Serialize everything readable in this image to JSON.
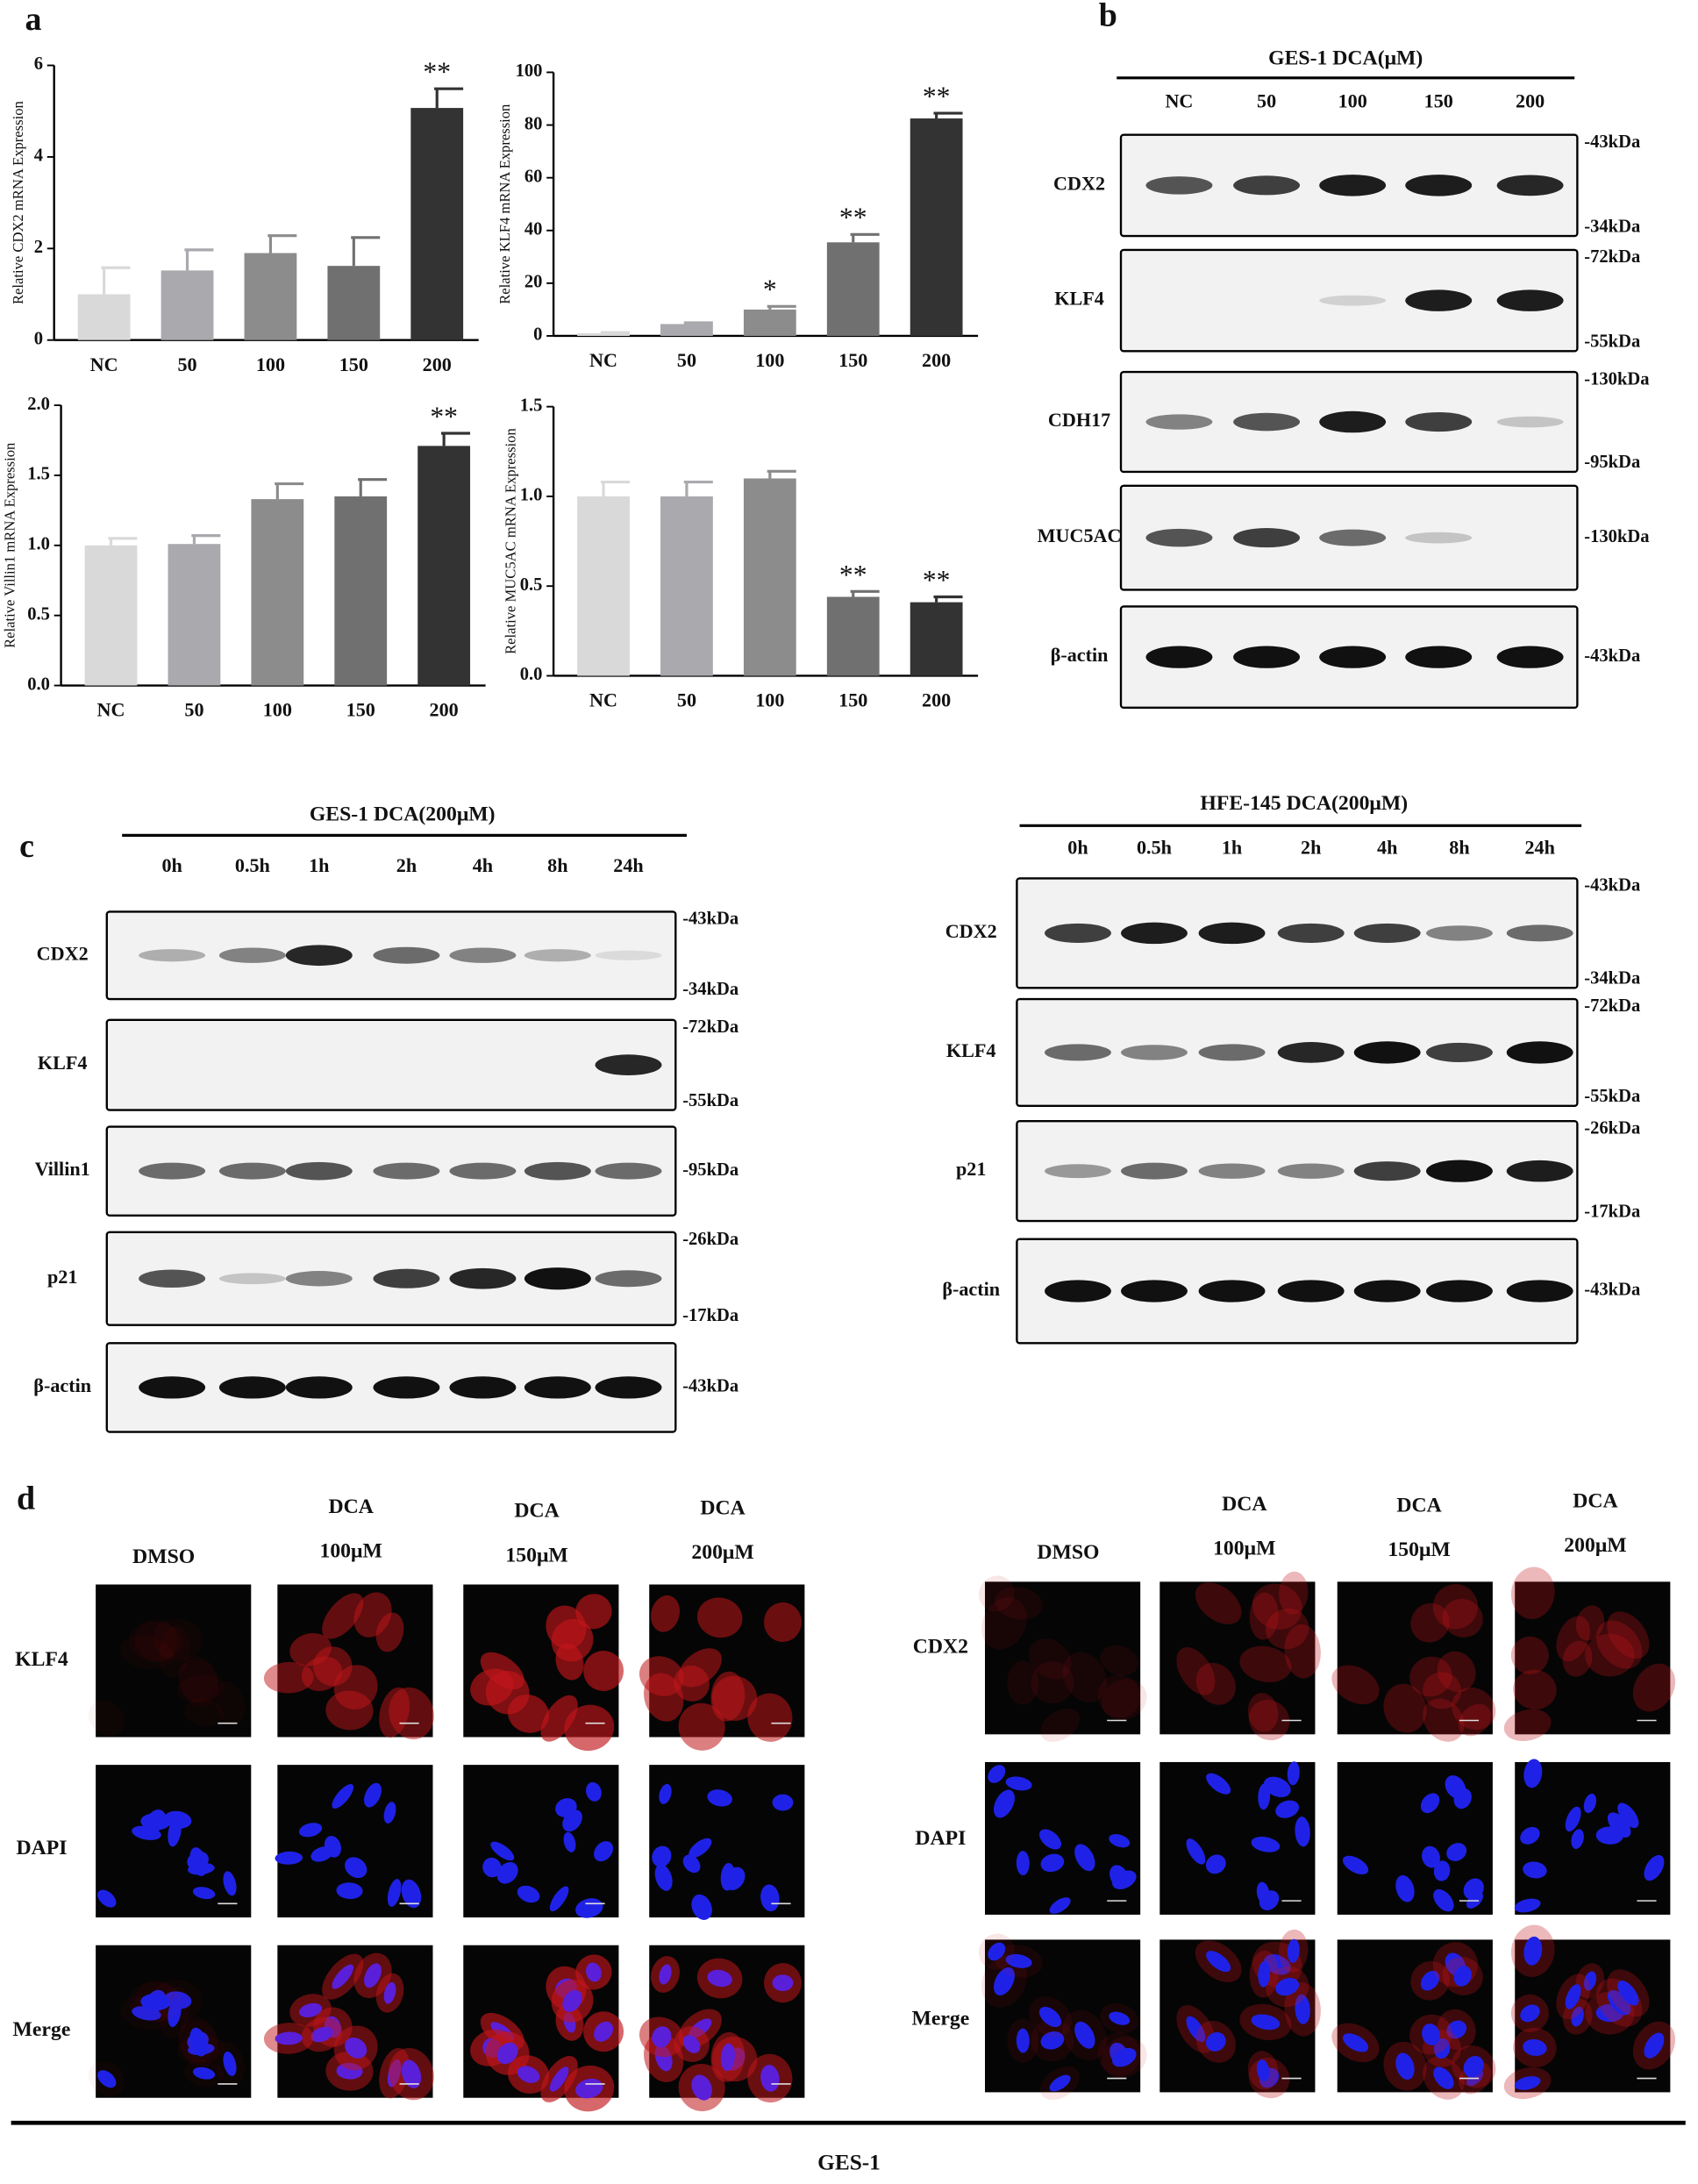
{
  "panel_labels": [
    "a",
    "b",
    "c",
    "d"
  ],
  "chart_data": [
    {
      "type": "bar",
      "ylabel": "Relative CDX2 mRNA Expression",
      "categories": [
        "NC",
        "50",
        "100",
        "150",
        "200"
      ],
      "values": [
        1.0,
        1.52,
        1.9,
        1.62,
        5.07
      ],
      "errors": [
        0.58,
        0.45,
        0.38,
        0.62,
        0.42
      ],
      "significance": [
        null,
        null,
        null,
        null,
        "**"
      ],
      "colors": [
        "#d9d9d9",
        "#a9a9ae",
        "#8c8c8c",
        "#707070",
        "#333333"
      ],
      "ylim": [
        0,
        6
      ],
      "yticks": [
        0,
        2,
        4,
        6
      ]
    },
    {
      "type": "bar",
      "ylabel": "Relative KLF4 mRNA Expression",
      "categories": [
        "NC",
        "50",
        "100",
        "150",
        "200"
      ],
      "values": [
        1.0,
        4.5,
        10.0,
        35.5,
        82.5
      ],
      "errors": [
        0.3,
        0.5,
        1.2,
        3.0,
        2.0
      ],
      "significance": [
        null,
        null,
        "*",
        "**",
        "**"
      ],
      "colors": [
        "#d9d9d9",
        "#a9a9ae",
        "#8c8c8c",
        "#707070",
        "#333333"
      ],
      "ylim": [
        0,
        100
      ],
      "yticks": [
        0,
        20,
        40,
        60,
        80,
        100
      ]
    },
    {
      "type": "bar",
      "ylabel": "Relative Villin1 mRNA Expression",
      "categories": [
        "NC",
        "50",
        "100",
        "150",
        "200"
      ],
      "values": [
        1.0,
        1.01,
        1.33,
        1.35,
        1.71
      ],
      "errors": [
        0.05,
        0.06,
        0.11,
        0.12,
        0.09
      ],
      "significance": [
        null,
        null,
        null,
        null,
        "**"
      ],
      "colors": [
        "#d9d9d9",
        "#a9a9ae",
        "#8c8c8c",
        "#707070",
        "#333333"
      ],
      "ylim": [
        0,
        2
      ],
      "yticks": [
        {
          "value": 0,
          "label": "0.0"
        },
        {
          "value": 0.5,
          "label": "0.5"
        },
        {
          "value": 1,
          "label": "1.0"
        },
        {
          "value": 1.5,
          "label": "1.5"
        },
        {
          "value": 2,
          "label": "2.0"
        }
      ]
    },
    {
      "type": "bar",
      "ylabel": "Relative MUC5AC mRNA Expression",
      "categories": [
        "NC",
        "50",
        "100",
        "150",
        "200"
      ],
      "values": [
        1.0,
        1.0,
        1.1,
        0.44,
        0.41
      ],
      "errors": [
        0.08,
        0.08,
        0.04,
        0.03,
        0.03
      ],
      "significance": [
        null,
        null,
        null,
        "**",
        "**"
      ],
      "colors": [
        "#d9d9d9",
        "#a9a9ae",
        "#8c8c8c",
        "#707070",
        "#333333"
      ],
      "ylim": [
        0,
        1.5
      ],
      "yticks": [
        {
          "value": 0,
          "label": "0.0"
        },
        {
          "value": 0.5,
          "label": "0.5"
        },
        {
          "value": 1,
          "label": "1.0"
        },
        {
          "value": 1.5,
          "label": "1.5"
        }
      ]
    }
  ],
  "blots": [
    {
      "header": "GES-1   DCA(μM)",
      "lanes": [
        "NC",
        "50",
        "100",
        "150",
        "200"
      ],
      "rows": [
        {
          "label": "CDX2",
          "markers": [
            "-43kDa",
            "-34kDa"
          ]
        },
        {
          "label": "KLF4",
          "markers": [
            "-72kDa",
            "-55kDa"
          ]
        },
        {
          "label": "CDH17",
          "markers": [
            "-130kDa",
            "-95kDa"
          ]
        },
        {
          "label": "MUC5AC",
          "markers": [
            "-130kDa"
          ]
        },
        {
          "label": "β-actin",
          "markers": [
            "-43kDa"
          ]
        }
      ]
    },
    {
      "header": "GES-1  DCA(200μM)",
      "lanes": [
        "0h",
        "0.5h",
        "1h",
        "2h",
        "4h",
        "8h",
        "24h"
      ],
      "rows": [
        {
          "label": "CDX2",
          "markers": [
            "-43kDa",
            "-34kDa"
          ]
        },
        {
          "label": "KLF4",
          "markers": [
            "-72kDa",
            "-55kDa"
          ]
        },
        {
          "label": "Villin1",
          "markers": [
            "-95kDa"
          ]
        },
        {
          "label": "p21",
          "markers": [
            "-26kDa",
            "-17kDa"
          ]
        },
        {
          "label": "β-actin",
          "markers": [
            "-43kDa"
          ]
        }
      ]
    },
    {
      "header": "HFE-145    DCA(200μM)",
      "lanes": [
        "0h",
        "0.5h",
        "1h",
        "2h",
        "4h",
        "8h",
        "24h"
      ],
      "rows": [
        {
          "label": "CDX2",
          "markers": [
            "-43kDa",
            "-34kDa"
          ]
        },
        {
          "label": "KLF4",
          "markers": [
            "-72kDa",
            "-55kDa"
          ]
        },
        {
          "label": "p21",
          "markers": [
            "-26kDa",
            "-17kDa"
          ]
        },
        {
          "label": "β-actin",
          "markers": [
            "-43kDa"
          ]
        }
      ]
    }
  ],
  "immunofluorescence": [
    {
      "columns": [
        [
          "DMSO"
        ],
        [
          "DCA",
          "100μM"
        ],
        [
          "DCA",
          "150μM"
        ],
        [
          "DCA",
          "200μM"
        ]
      ],
      "rows": [
        "KLF4",
        "DAPI",
        "Merge"
      ]
    },
    {
      "columns": [
        [
          "DMSO"
        ],
        [
          "DCA",
          "100μM"
        ],
        [
          "DCA",
          "150μM"
        ],
        [
          "DCA",
          "200μM"
        ]
      ],
      "rows": [
        "CDX2",
        "DAPI",
        "Merge"
      ]
    }
  ],
  "footer": "GES-1"
}
